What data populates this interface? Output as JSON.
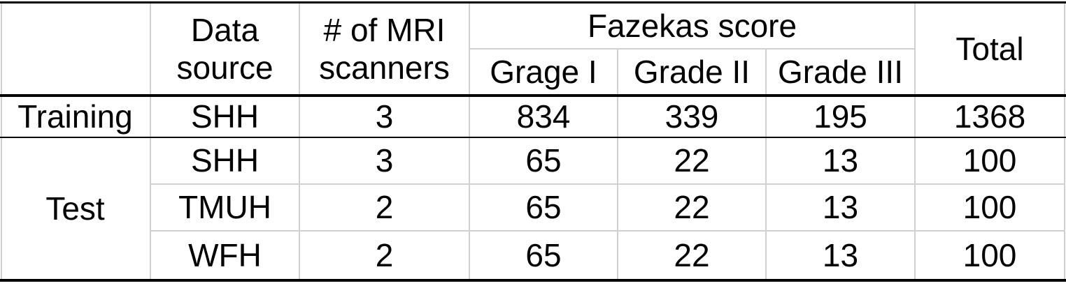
{
  "table": {
    "header": {
      "data_source": [
        "Data",
        "source"
      ],
      "scanners": [
        "# of MRI",
        "scanners"
      ],
      "fazekas": "Fazekas score",
      "grades": [
        "Grage I",
        "Grade II",
        "Grade III"
      ],
      "total": "Total"
    },
    "training": {
      "label": "Training",
      "row": {
        "source": "SHH",
        "scanners": "3",
        "g1": "834",
        "g2": "339",
        "g3": "195",
        "total": "1368"
      }
    },
    "test": {
      "label": "Test",
      "rows": [
        {
          "source": "SHH",
          "scanners": "3",
          "g1": "65",
          "g2": "22",
          "g3": "13",
          "total": "100"
        },
        {
          "source": "TMUH",
          "scanners": "2",
          "g1": "65",
          "g2": "22",
          "g3": "13",
          "total": "100"
        },
        {
          "source": "WFH",
          "scanners": "2",
          "g1": "65",
          "g2": "22",
          "g3": "13",
          "total": "100"
        }
      ]
    }
  }
}
